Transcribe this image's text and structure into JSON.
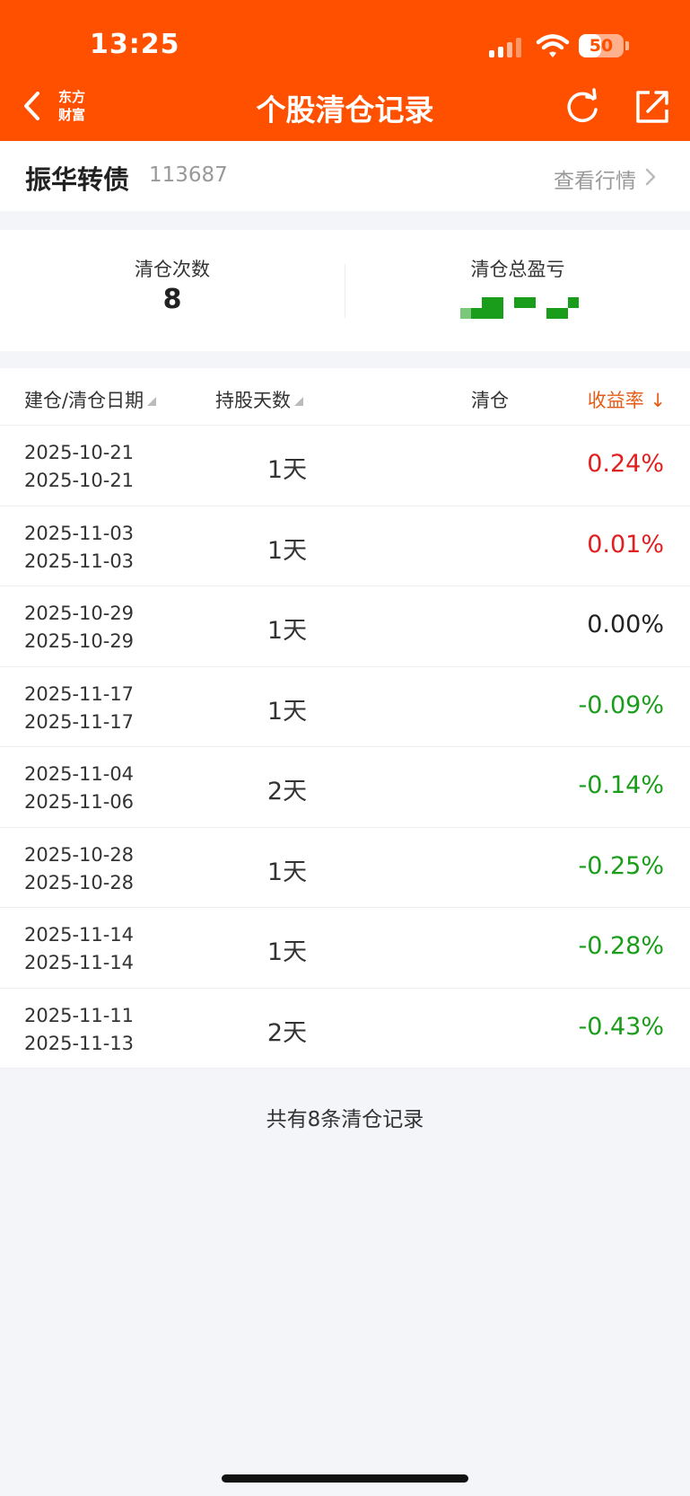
{
  "status_bar": {
    "time": "13:25",
    "battery": "50",
    "battery_level": 0.5
  },
  "header": {
    "title": "个股清仓记录",
    "brand_line1": "东方",
    "brand_line2": "财富",
    "icons": [
      "back-chevron-icon",
      "refresh-icon",
      "share-icon"
    ]
  },
  "stock": {
    "name": "振华转债",
    "code": "113687",
    "view_quote": "查看行情"
  },
  "summary": {
    "count_label": "清仓次数",
    "count_value": "8",
    "total_pnl_label": "清仓总盈亏"
  },
  "table": {
    "headers": {
      "date": "建仓/清仓日期",
      "days": "持股天数",
      "pnl": "清仓",
      "rate": "收益率"
    },
    "rows": [
      {
        "open": "2025-10-21",
        "close": "2025-10-21",
        "days": "1天",
        "rate": "0.24%",
        "tone": "up"
      },
      {
        "open": "2025-11-03",
        "close": "2025-11-03",
        "days": "1天",
        "rate": "0.01%",
        "tone": "up"
      },
      {
        "open": "2025-10-29",
        "close": "2025-10-29",
        "days": "1天",
        "rate": "0.00%",
        "tone": "flat"
      },
      {
        "open": "2025-11-17",
        "close": "2025-11-17",
        "days": "1天",
        "rate": "-0.09%",
        "tone": "down"
      },
      {
        "open": "2025-11-04",
        "close": "2025-11-06",
        "days": "2天",
        "rate": "-0.14%",
        "tone": "down"
      },
      {
        "open": "2025-10-28",
        "close": "2025-10-28",
        "days": "1天",
        "rate": "-0.25%",
        "tone": "down"
      },
      {
        "open": "2025-11-14",
        "close": "2025-11-14",
        "days": "1天",
        "rate": "-0.28%",
        "tone": "down"
      },
      {
        "open": "2025-11-11",
        "close": "2025-11-13",
        "days": "2天",
        "rate": "-0.43%",
        "tone": "down"
      }
    ]
  },
  "footer": {
    "note": "共有8条清仓记录"
  },
  "colors": {
    "brand": "#ff5000",
    "up": "#e02020",
    "down": "#1a9d1a",
    "flat": "#222222",
    "sort_active": "#e65c16"
  }
}
